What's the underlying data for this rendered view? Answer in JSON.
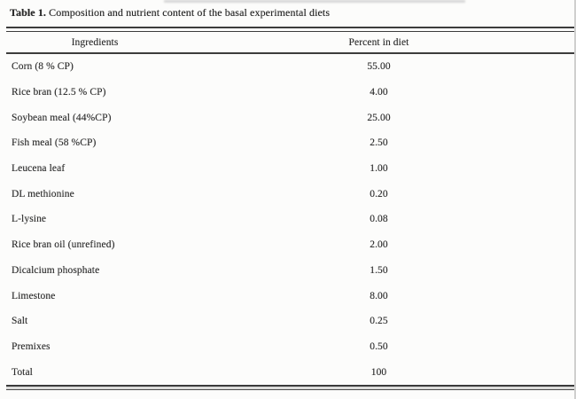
{
  "table": {
    "caption_label": "Table 1.",
    "caption_text": " Composition and nutrient content of the basal experimental diets",
    "columns": [
      "Ingredients",
      "Percent in diet"
    ],
    "rows": [
      {
        "ingredient": "Corn (8 % CP)",
        "percent": "55.00"
      },
      {
        "ingredient": "Rice bran (12.5 % CP)",
        "percent": "4.00"
      },
      {
        "ingredient": "Soybean meal (44%CP)",
        "percent": "25.00"
      },
      {
        "ingredient": "Fish meal (58 %CP)",
        "percent": "2.50"
      },
      {
        "ingredient": "Leucena leaf",
        "percent": "1.00"
      },
      {
        "ingredient": "DL methionine",
        "percent": "0.20"
      },
      {
        "ingredient": "L-lysine",
        "percent": "0.08"
      },
      {
        "ingredient": "Rice bran oil (unrefined)",
        "percent": "2.00"
      },
      {
        "ingredient": "Dicalcium phosphate",
        "percent": "1.50"
      },
      {
        "ingredient": "Limestone",
        "percent": "8.00"
      },
      {
        "ingredient": "Salt",
        "percent": "0.25"
      },
      {
        "ingredient": "Premixes",
        "percent": "0.50"
      },
      {
        "ingredient": "Total",
        "percent": "100"
      }
    ],
    "colors": {
      "rule": "#3c3c3c",
      "text": "#2e2e2e",
      "background": "#fcfcfb"
    }
  }
}
